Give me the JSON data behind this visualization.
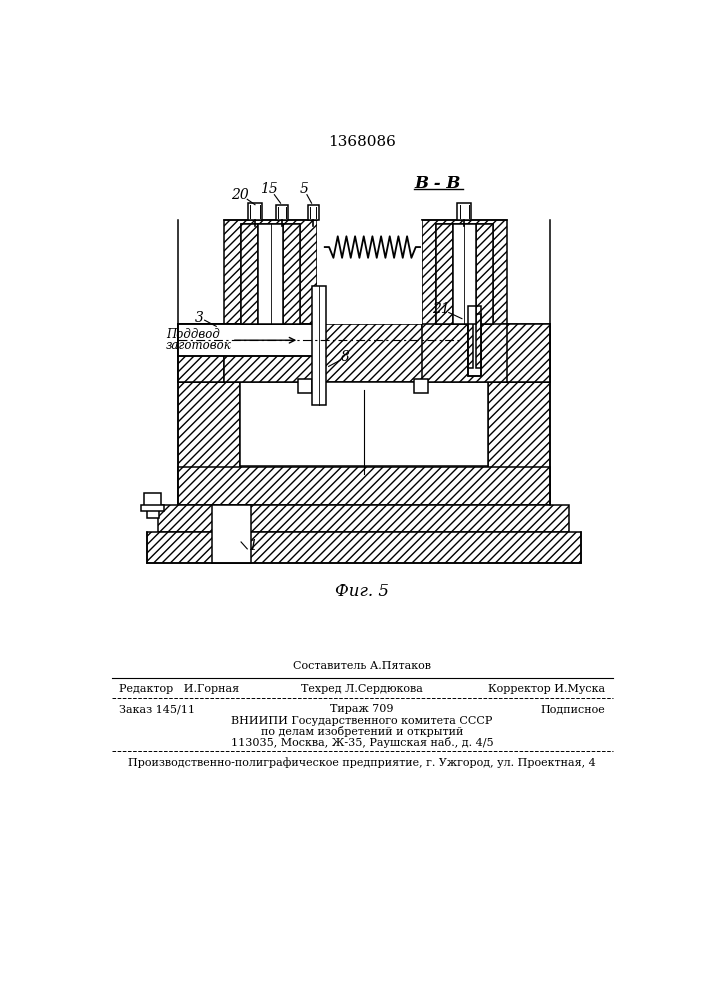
{
  "patent_number": "1368086",
  "fig_label": "Фиг. 5",
  "section_label": "В - В",
  "footer": {
    "line1_left": "Редактор   И.Горная",
    "line1_center_top": "Составитель А.Пятаков",
    "line1_center_bot": "Техред Л.Сердюкова",
    "line1_right": "Корректор И.Муска",
    "line2_left": "Заказ 145/11",
    "line2_center": "Тираж 709",
    "line2_right": "Подписное",
    "line3": "ВНИИПИ Государственного комитета СССР",
    "line4": "по делам изобретений и открытий",
    "line5": "113035, Москва, Ж-35, Раушская наб., д. 4/5",
    "line6": "Производственно-полиграфическое предприятие, г. Ужгород, ул. Проектная, 4"
  },
  "bg_color": "#ffffff"
}
